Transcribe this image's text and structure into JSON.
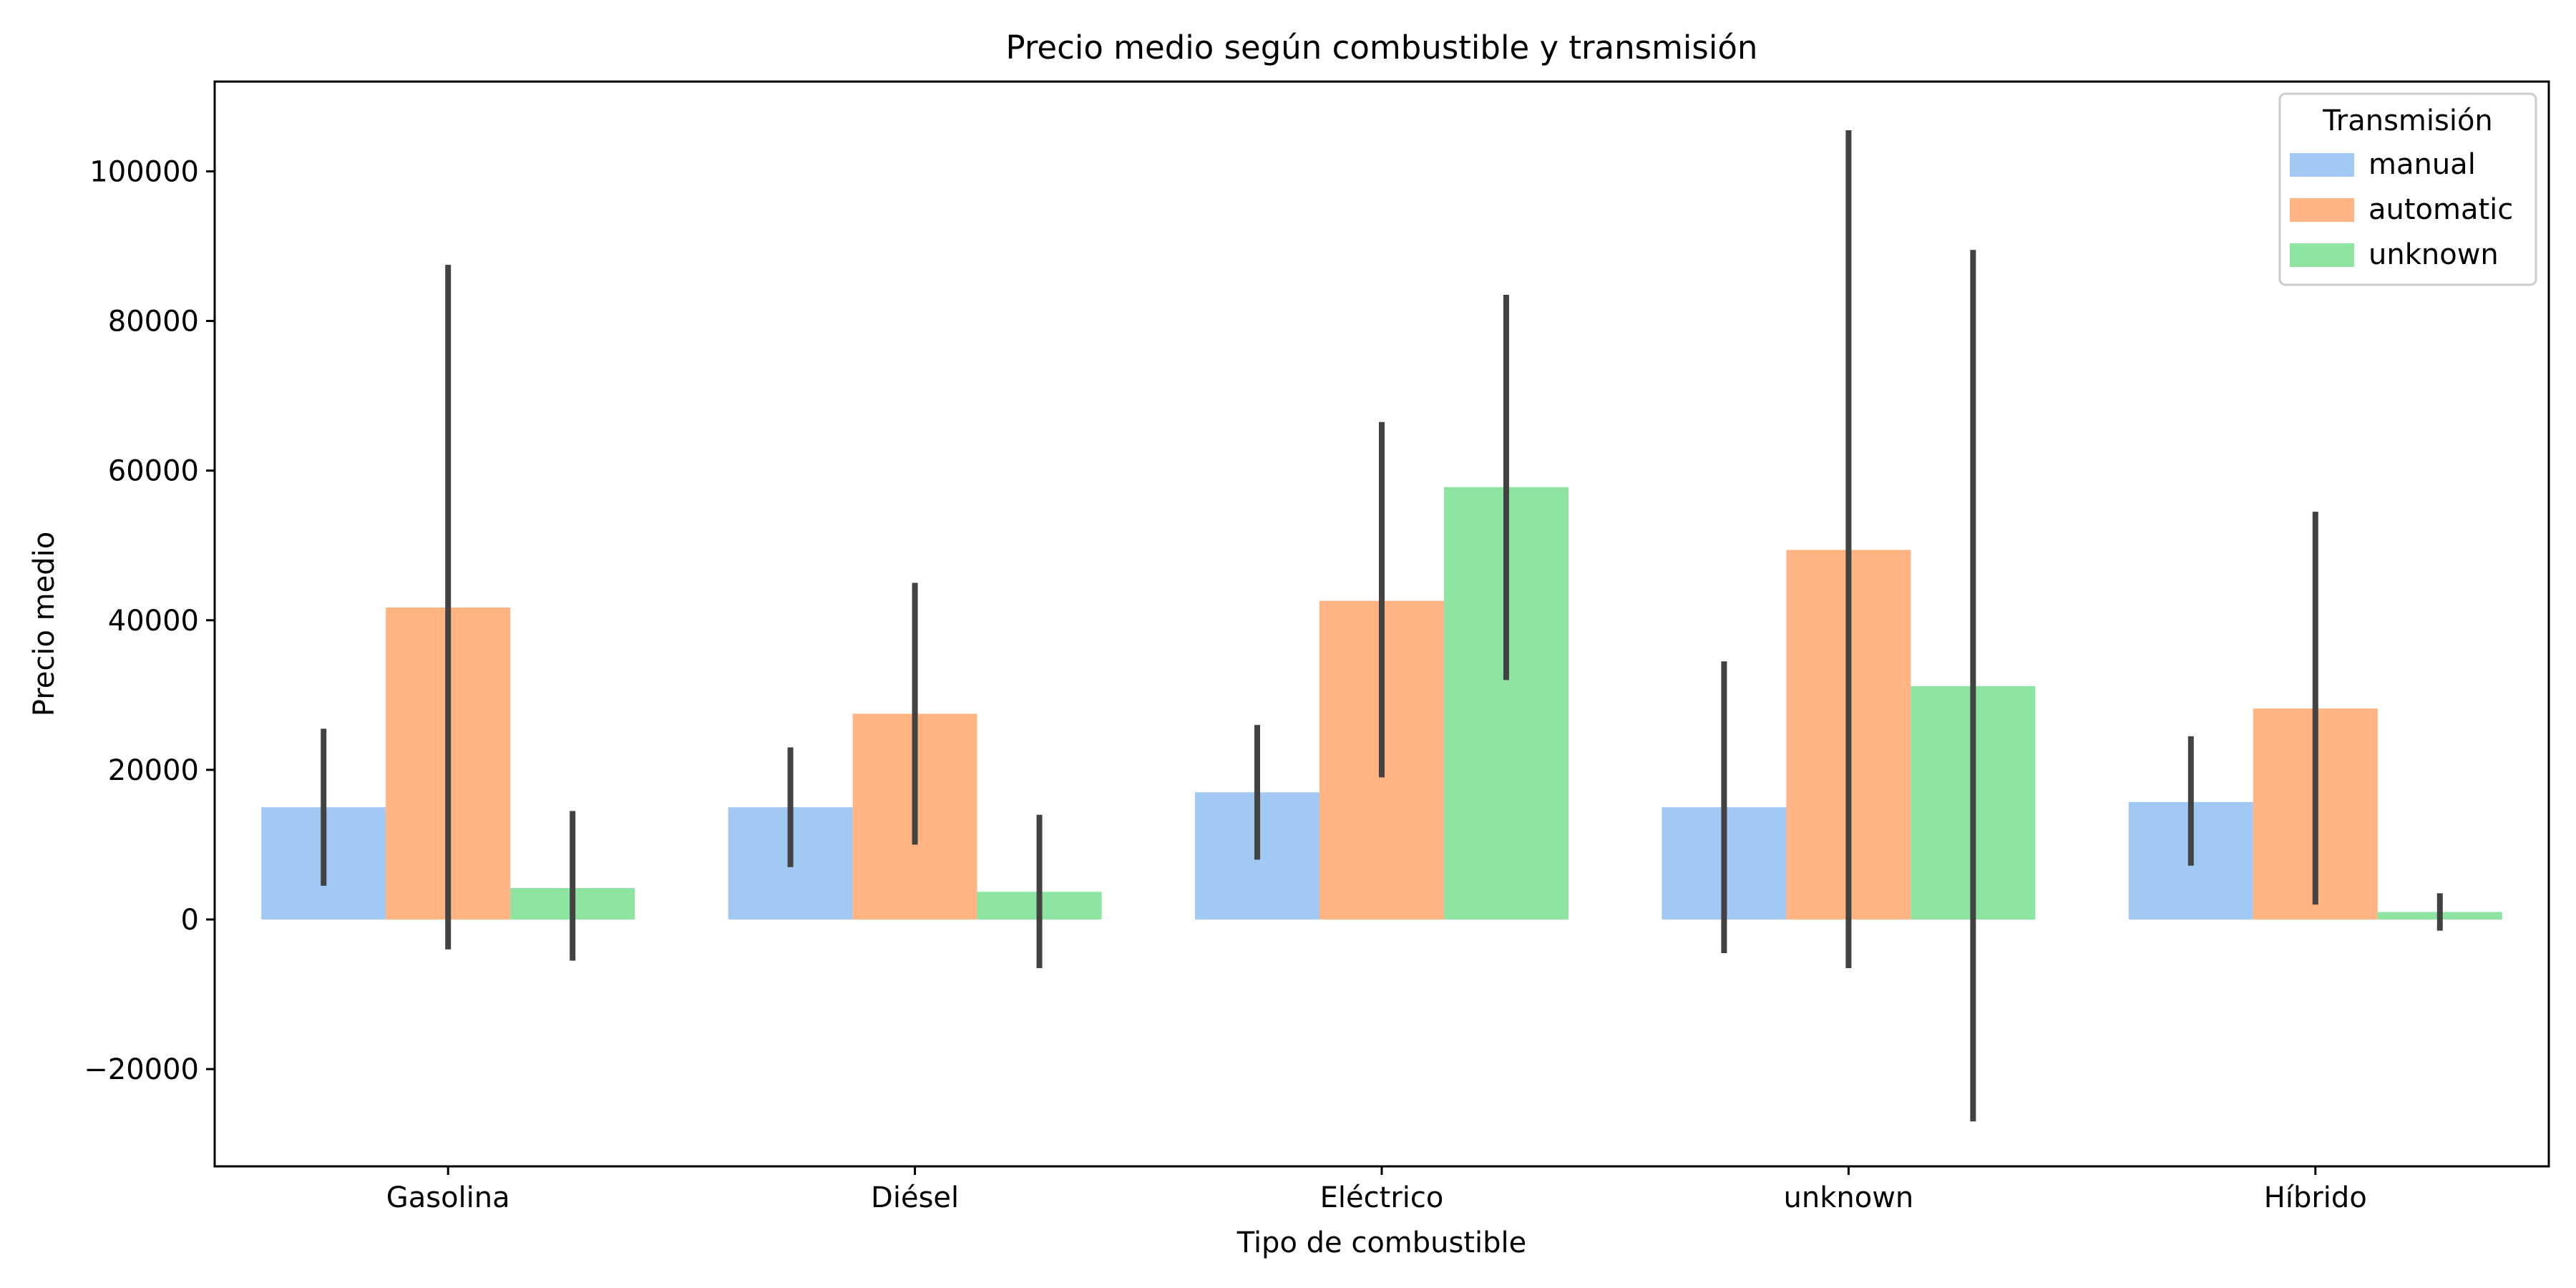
{
  "chart_data": {
    "type": "bar",
    "title": "Precio medio según combustible y transmisión",
    "xlabel": "Tipo de combustible",
    "ylabel": "Precio medio",
    "categories": [
      "Gasolina",
      "Diésel",
      "Eléctrico",
      "unknown",
      "Híbrido"
    ],
    "ylim": [
      -33000,
      112000
    ],
    "yticks": [
      -20000,
      0,
      20000,
      40000,
      60000,
      80000,
      100000
    ],
    "ytick_labels": [
      "−20000",
      "0",
      "20000",
      "40000",
      "60000",
      "80000",
      "100000"
    ],
    "grid": false,
    "legend": {
      "title": "Transmisión",
      "placement": "top-right"
    },
    "series": [
      {
        "name": "manual",
        "color": "#a1c9f4",
        "values": [
          15000,
          15000,
          17000,
          15000,
          15700
        ],
        "error_low": [
          4500,
          7000,
          8000,
          -4500,
          7200
        ],
        "error_high": [
          25500,
          23000,
          26000,
          34500,
          24500
        ]
      },
      {
        "name": "automatic",
        "color": "#ffb482",
        "values": [
          41700,
          27500,
          42600,
          49400,
          28200
        ],
        "error_low": [
          -4000,
          10000,
          19000,
          -6500,
          2000
        ],
        "error_high": [
          87500,
          45000,
          66500,
          105500,
          54500
        ]
      },
      {
        "name": "unknown",
        "color": "#8de5a1",
        "values": [
          4200,
          3700,
          57800,
          31200,
          1000
        ],
        "error_low": [
          -5500,
          -6500,
          32000,
          -27000,
          -1500
        ],
        "error_high": [
          14500,
          14000,
          83500,
          89500,
          3500
        ]
      }
    ]
  }
}
